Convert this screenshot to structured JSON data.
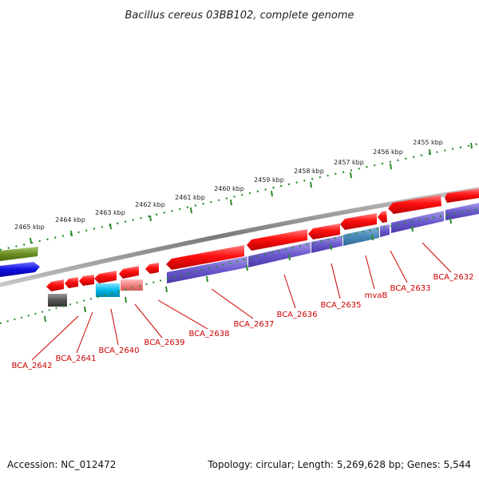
{
  "title": "Bacillus cereus 03BB102, complete genome",
  "footer": {
    "accession": "Accession: NC_012472",
    "summary": "Topology: circular; Length: 5,269,628 bp; Genes: 5,544"
  },
  "colors": {
    "backbone": "#8a8a8a",
    "ticks": "#2b8a2b",
    "gene_forward": "#ff1010",
    "gene_label": "#cc0000",
    "cds_reverse": "#6a5acd",
    "cds_highlight": "#4a8ab8",
    "rna_cyan": "#00b8e6",
    "rna_pink": "#f08080",
    "misc_gray": "#555555",
    "outer_olive": "#6b8e23",
    "outer_blue": "#1010e0"
  },
  "scale_labels": [
    "2455 kbp",
    "2456 kbp",
    "2457 kbp",
    "2458 kbp",
    "2459 kbp",
    "2460 kbp",
    "2461 kbp",
    "2462 kbp",
    "2463 kbp",
    "2464 kbp",
    "2465 kbp"
  ],
  "gene_labels": [
    "BCA_2632",
    "BCA_2633",
    "mvaB",
    "BCA_2635",
    "BCA_2636",
    "BCA_2637",
    "BCA_2638",
    "BCA_2639",
    "BCA_2640",
    "BCA_2641",
    "BCA_2642"
  ]
}
